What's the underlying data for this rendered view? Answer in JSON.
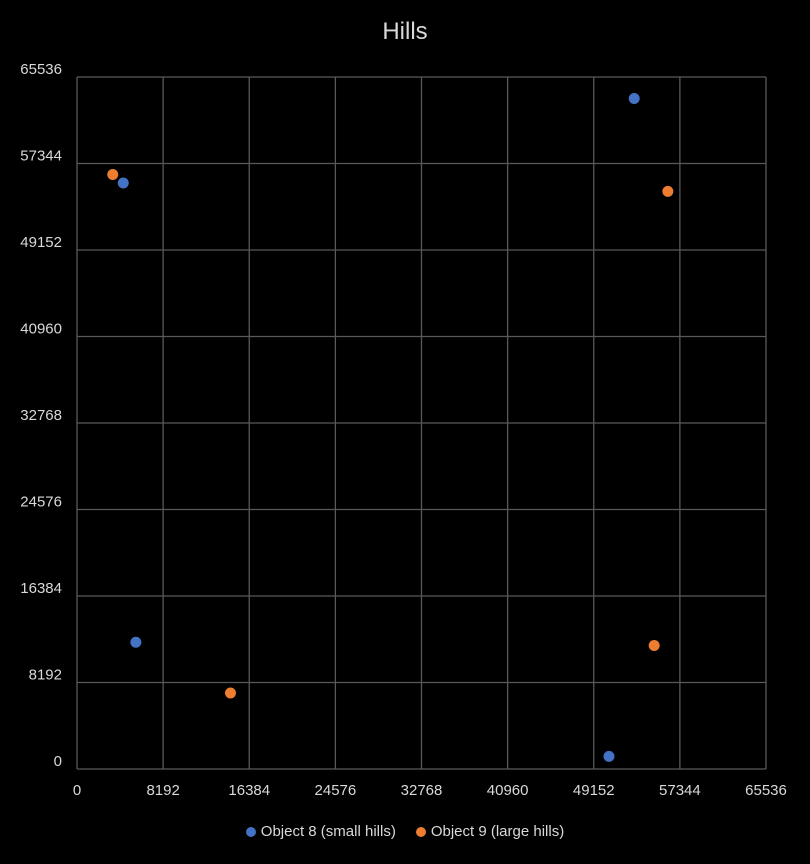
{
  "chart_data": {
    "type": "scatter",
    "title": "Hills",
    "xlabel": "",
    "ylabel": "",
    "xlim": [
      0,
      65536
    ],
    "ylim": [
      0,
      65536
    ],
    "xticks": [
      0,
      8192,
      16384,
      24576,
      32768,
      40960,
      49152,
      57344,
      65536
    ],
    "yticks": [
      0,
      8192,
      16384,
      24576,
      32768,
      40960,
      49152,
      57344,
      65536
    ],
    "grid": true,
    "legend_position": "bottom",
    "series": [
      {
        "name": "Object 8 (small hills)",
        "color": "#4472c4",
        "points": [
          {
            "x": 4400,
            "y": 55500
          },
          {
            "x": 5600,
            "y": 12000
          },
          {
            "x": 53000,
            "y": 63500
          },
          {
            "x": 50600,
            "y": 1200
          }
        ]
      },
      {
        "name": "Object 9 (large hills)",
        "color": "#ed7d31",
        "points": [
          {
            "x": 3400,
            "y": 56300
          },
          {
            "x": 14600,
            "y": 7200
          },
          {
            "x": 56200,
            "y": 54700
          },
          {
            "x": 54900,
            "y": 11700
          }
        ]
      }
    ]
  }
}
